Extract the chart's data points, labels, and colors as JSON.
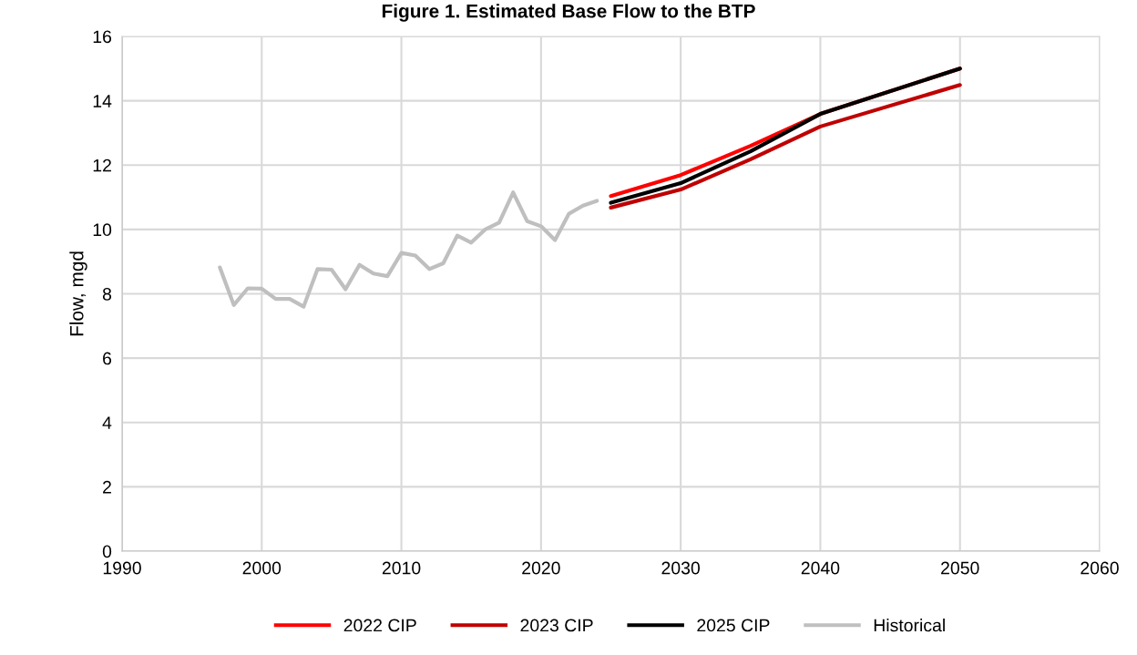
{
  "chart_data": {
    "type": "line",
    "title": "Figure 1. Estimated Base Flow to the BTP",
    "ylabel": "Flow, mgd",
    "xlim": [
      1990,
      2060
    ],
    "xticks": [
      1990,
      2000,
      2010,
      2020,
      2030,
      2040,
      2050,
      2060
    ],
    "ylim": [
      0,
      16
    ],
    "yticks": [
      0,
      2,
      4,
      6,
      8,
      10,
      12,
      14,
      16
    ],
    "grid": true,
    "legend": "bottom",
    "marker": "none",
    "line_style": "solid",
    "series": [
      {
        "name": "2022 CIP",
        "color": "#ff0000",
        "x": [
          2025,
          2030,
          2035,
          2040,
          2050
        ],
        "values": [
          11.04,
          11.69,
          12.6,
          13.59,
          15.0
        ]
      },
      {
        "name": "2023 CIP",
        "color": "#c00000",
        "x": [
          2025,
          2030,
          2035,
          2040,
          2050
        ],
        "values": [
          10.68,
          11.24,
          12.18,
          13.2,
          14.49
        ]
      },
      {
        "name": "2025 CIP",
        "color": "#000000",
        "x": [
          2025,
          2030,
          2035,
          2040,
          2050
        ],
        "values": [
          10.83,
          11.44,
          12.43,
          13.59,
          15.0
        ]
      },
      {
        "name": "Historical",
        "color": "#bfbfbf",
        "x": [
          1997,
          1998,
          1999,
          2000,
          2001,
          2002,
          2003,
          2004,
          2005,
          2006,
          2007,
          2008,
          2009,
          2010,
          2011,
          2012,
          2013,
          2014,
          2015,
          2016,
          2017,
          2018,
          2019,
          2020,
          2021,
          2022,
          2023,
          2024
        ],
        "values": [
          8.82,
          7.65,
          8.17,
          8.16,
          7.84,
          7.84,
          7.6,
          8.77,
          8.75,
          8.14,
          8.9,
          8.63,
          8.55,
          9.27,
          9.19,
          8.77,
          8.95,
          9.81,
          9.59,
          10.0,
          10.21,
          11.15,
          10.26,
          10.1,
          9.67,
          10.49,
          10.74,
          10.89
        ]
      }
    ]
  }
}
